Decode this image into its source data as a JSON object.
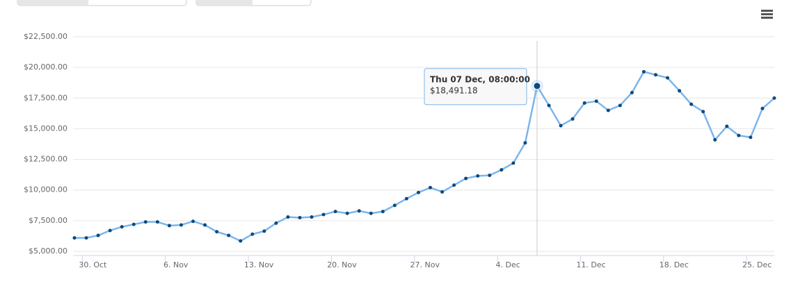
{
  "chart_data": {
    "type": "line",
    "categories": [
      null,
      "30. Oct",
      null,
      null,
      null,
      null,
      null,
      null,
      "6. Nov",
      null,
      null,
      null,
      null,
      null,
      null,
      "13. Nov",
      null,
      null,
      null,
      null,
      null,
      null,
      "20. Nov",
      null,
      null,
      null,
      null,
      null,
      null,
      "27. Nov",
      null,
      null,
      null,
      null,
      null,
      null,
      "4. Dec",
      null,
      null,
      null,
      null,
      null,
      null,
      "11. Dec",
      null,
      null,
      null,
      null,
      null,
      null,
      "18. Dec",
      null,
      null,
      null,
      null,
      null,
      null,
      "25. Dec",
      null,
      null
    ],
    "values": [
      6100,
      6100,
      6300,
      6700,
      7000,
      7200,
      7400,
      7400,
      7100,
      7150,
      7450,
      7150,
      6600,
      6300,
      5850,
      6400,
      6650,
      7300,
      7800,
      7750,
      7800,
      8000,
      8250,
      8100,
      8300,
      8100,
      8250,
      8750,
      9300,
      9800,
      10200,
      9850,
      10400,
      10950,
      11150,
      11200,
      11650,
      12200,
      13850,
      18491.18,
      16900,
      15250,
      15800,
      17100,
      17250,
      16500,
      16900,
      17950,
      19650,
      19400,
      19150,
      18100,
      17000,
      16400,
      14100,
      15200,
      14450,
      14300,
      16650,
      17500
    ],
    "value_labels": [
      null,
      null,
      null,
      null,
      null,
      null,
      null,
      null,
      null,
      null,
      null,
      null,
      null,
      null,
      null,
      null,
      null,
      null,
      null,
      null,
      null,
      null,
      null,
      null,
      null,
      null,
      null,
      null,
      null,
      null,
      null,
      null,
      null,
      null,
      null,
      null,
      null,
      null,
      null,
      "$18,491.18",
      null,
      null,
      null,
      null,
      null,
      null,
      null,
      null,
      null,
      null,
      null,
      null,
      null,
      null,
      null,
      null,
      null,
      null,
      null,
      null
    ],
    "tooltip_title": "Thu 07 Dec, 08:00:00",
    "color": "#7cb5ec",
    "marker_color": "#0d4a7a",
    "ylim": [
      5000,
      22500
    ],
    "yticks": [
      {
        "value": 5000,
        "label": "$5,000.00"
      },
      {
        "value": 7500,
        "label": "$7,500.00"
      },
      {
        "value": 10000,
        "label": "$10,000.00"
      },
      {
        "value": 12500,
        "label": "$12,500.00"
      },
      {
        "value": 15000,
        "label": "$15,000.00"
      },
      {
        "value": 17500,
        "label": "$17,500.00"
      },
      {
        "value": 20000,
        "label": "$20,000.00"
      },
      {
        "value": 22500,
        "label": "$22,500.00"
      }
    ],
    "grid": true
  }
}
